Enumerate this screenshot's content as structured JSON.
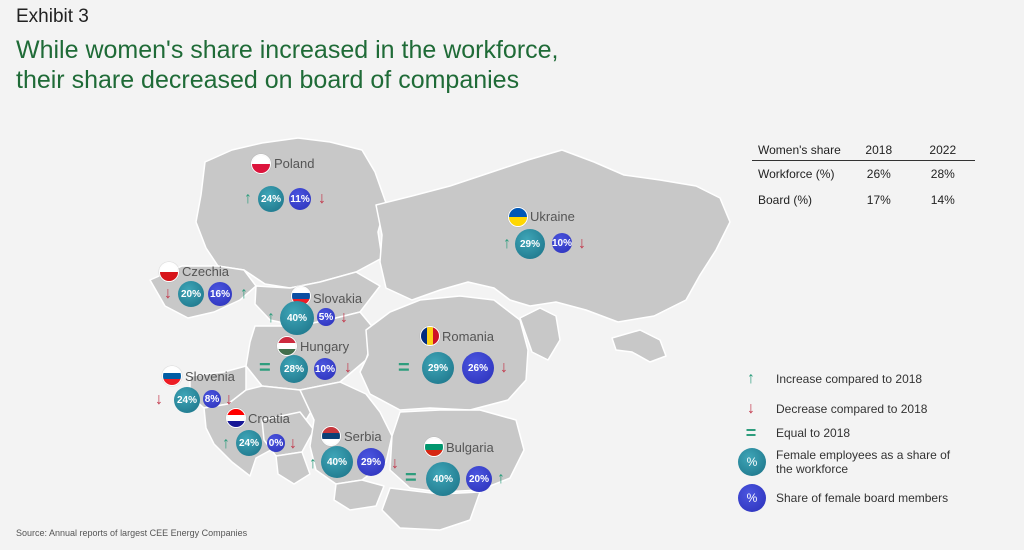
{
  "exhibit": "Exhibit 3",
  "title_line1": "While women's share increased in the workforce,",
  "title_line2": "their share decreased on board of companies",
  "countries": [
    {
      "id": "poland",
      "name": "Poland",
      "flag": [
        "#ffffff",
        "#dc143c"
      ],
      "workforce": "24%",
      "board": "11%",
      "wf_trend": "up",
      "bd_trend": "down"
    },
    {
      "id": "ukraine",
      "name": "Ukraine",
      "flag": [
        "#0057b7",
        "#ffd700"
      ],
      "workforce": "29%",
      "board": "10%",
      "wf_trend": "up",
      "bd_trend": "down"
    },
    {
      "id": "czechia",
      "name": "Czechia",
      "flag": [
        "#ffffff",
        "#d7141a"
      ],
      "workforce": "20%",
      "board": "16%",
      "wf_trend": "down",
      "bd_trend": "up"
    },
    {
      "id": "slovakia",
      "name": "Slovakia",
      "flag": [
        "#ffffff",
        "#0b4ea2",
        "#ee1c25"
      ],
      "workforce": "40%",
      "board": "5%",
      "wf_trend": "up",
      "bd_trend": "down"
    },
    {
      "id": "hungary",
      "name": "Hungary",
      "flag": [
        "#cd2a3e",
        "#ffffff",
        "#436f4d"
      ],
      "workforce": "28%",
      "board": "10%",
      "wf_trend": "eq",
      "bd_trend": "down"
    },
    {
      "id": "romania",
      "name": "Romania",
      "flag": [
        "#002b7f",
        "#fcd116",
        "#ce1126"
      ],
      "workforce": "29%",
      "board": "26%",
      "wf_trend": "eq",
      "bd_trend": "down"
    },
    {
      "id": "slovenia",
      "name": "Slovenia",
      "flag": [
        "#ffffff",
        "#005da4",
        "#ed1c24"
      ],
      "workforce": "24%",
      "board": "8%",
      "wf_trend": "down",
      "bd_trend": "down"
    },
    {
      "id": "croatia",
      "name": "Croatia",
      "flag": [
        "#ff0000",
        "#ffffff",
        "#171796"
      ],
      "workforce": "24%",
      "board": "0%",
      "wf_trend": "up",
      "bd_trend": "down"
    },
    {
      "id": "serbia",
      "name": "Serbia",
      "flag": [
        "#c6363c",
        "#0c4076",
        "#ffffff"
      ],
      "workforce": "40%",
      "board": "29%",
      "wf_trend": "up",
      "bd_trend": "down"
    },
    {
      "id": "bulgaria",
      "name": "Bulgaria",
      "flag": [
        "#ffffff",
        "#00966e",
        "#d62612"
      ],
      "workforce": "40%",
      "board": "20%",
      "wf_trend": "eq",
      "bd_trend": "up"
    }
  ],
  "table": {
    "header": [
      "Women's share",
      "2018",
      "2022"
    ],
    "rows": [
      [
        "Workforce (%)",
        "26%",
        "28%"
      ],
      [
        "Board (%)",
        "17%",
        "14%"
      ]
    ]
  },
  "legend": {
    "increase": "Increase compared to 2018",
    "decrease": "Decrease compared to 2018",
    "equal": "Equal to 2018",
    "workforce_line1": "Female employees as a share of",
    "workforce_line2": "the workforce",
    "board": "Share of female board members",
    "percent_symbol": "%"
  },
  "symbols": {
    "up": "↑",
    "down": "↓",
    "eq": "="
  },
  "colors": {
    "workforce": "#1f8a9c",
    "board": "#3340d4",
    "up": "#2e9d7d",
    "down": "#c2374a",
    "title": "#1f6b37",
    "land": "#c8c8c8",
    "border": "#ffffff"
  },
  "source": "Source: Annual reports of largest CEE Energy Companies"
}
